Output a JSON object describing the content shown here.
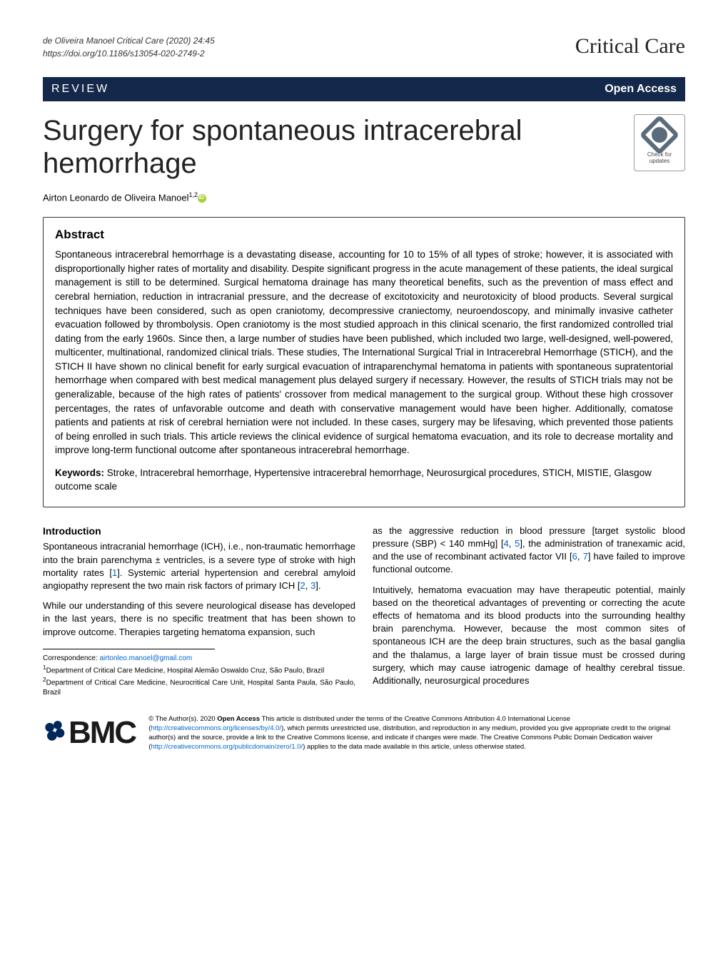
{
  "running": {
    "left_line1": "de Oliveira Manoel Critical Care          (2020) 24:45",
    "left_line2": "https://doi.org/10.1186/s13054-020-2749-2",
    "journal": "Critical Care"
  },
  "bar": {
    "type": "REVIEW",
    "access": "Open Access"
  },
  "title": "Surgery for spontaneous intracerebral hemorrhage",
  "badge": {
    "text": "Check for updates"
  },
  "authors": {
    "name": "Airton Leonardo de Oliveira Manoel",
    "affil": "1,2"
  },
  "abstract": {
    "heading": "Abstract",
    "body": "Spontaneous intracerebral hemorrhage is a devastating disease, accounting for 10 to 15% of all types of stroke; however, it is associated with disproportionally higher rates of mortality and disability. Despite significant progress in the acute management of these patients, the ideal surgical management is still to be determined. Surgical hematoma drainage has many theoretical benefits, such as the prevention of mass effect and cerebral herniation, reduction in intracranial pressure, and the decrease of excitotoxicity and neurotoxicity of blood products. Several surgical techniques have been considered, such as open craniotomy, decompressive craniectomy, neuroendoscopy, and minimally invasive catheter evacuation followed by thrombolysis. Open craniotomy is the most studied approach in this clinical scenario, the first randomized controlled trial dating from the early 1960s. Since then, a large number of studies have been published, which included two large, well-designed, well-powered, multicenter, multinational, randomized clinical trials. These studies, The International Surgical Trial in Intracerebral Hemorrhage (STICH), and the STICH II have shown no clinical benefit for early surgical evacuation of intraparenchymal hematoma in patients with spontaneous supratentorial hemorrhage when compared with best medical management plus delayed surgery if necessary. However, the results of STICH trials may not be generalizable, because of the high rates of patients' crossover from medical management to the surgical group. Without these high crossover percentages, the rates of unfavorable outcome and death with conservative management would have been higher. Additionally, comatose patients and patients at risk of cerebral herniation were not included. In these cases, surgery may be lifesaving, which prevented those patients of being enrolled in such trials. This article reviews the clinical evidence of surgical hematoma evacuation, and its role to decrease mortality and improve long-term functional outcome after spontaneous intracerebral hemorrhage.",
    "keywords_label": "Keywords:",
    "keywords": " Stroke, Intracerebral hemorrhage, Hypertensive intracerebral hemorrhage, Neurosurgical procedures, STICH, MISTIE, Glasgow outcome scale"
  },
  "intro": {
    "heading": "Introduction",
    "p1a": "Spontaneous intracranial hemorrhage (ICH), i.e., non-traumatic hemorrhage into the brain parenchyma ± ventricles, is a severe type of stroke with high mortality rates [",
    "r1": "1",
    "p1b": "]. Systemic arterial hypertension and cerebral amyloid angiopathy represent the two main risk factors of primary ICH [",
    "r2": "2",
    "p1c": ", ",
    "r3": "3",
    "p1d": "].",
    "p2": "While our understanding of this severe neurological disease has developed in the last years, there is no specific treatment that has been shown to improve outcome. Therapies targeting hematoma expansion, such"
  },
  "col2": {
    "p1a": "as the aggressive reduction in blood pressure [target systolic blood pressure (SBP) < 140 mmHg] [",
    "r4": "4",
    "p1b": ", ",
    "r5": "5",
    "p1c": "], the administration of tranexamic acid, and the use of recombinant activated factor VII [",
    "r6": "6",
    "p1d": ", ",
    "r7": "7",
    "p1e": "] have failed to improve functional outcome.",
    "p2": "Intuitively, hematoma evacuation may have therapeutic potential, mainly based on the theoretical advantages of preventing or correcting the acute effects of hematoma and its blood products into the surrounding healthy brain parenchyma. However, because the most common sites of spontaneous ICH are the deep brain structures, such as the basal ganglia and the thalamus, a large layer of brain tissue must be crossed during surgery, which may cause iatrogenic damage of healthy cerebral tissue. Additionally, neurosurgical procedures"
  },
  "correspondence": {
    "label": "Correspondence: ",
    "email": "airtonleo.manoel@gmail.com",
    "a1": "Department of Critical Care Medicine, Hospital Alemão Oswaldo Cruz, São Paulo, Brazil",
    "a2": "Department of Critical Care Medicine, Neurocritical Care Unit, Hospital Santa Paula, São Paulo, Brazil"
  },
  "footer": {
    "logo": "BMC",
    "license_a": "© The Author(s). 2020 ",
    "license_bold": "Open Access",
    "license_b": " This article is distributed under the terms of the Creative Commons Attribution 4.0 International License (",
    "url1": "http://creativecommons.org/licenses/by/4.0/",
    "license_c": "), which permits unrestricted use, distribution, and reproduction in any medium, provided you give appropriate credit to the original author(s) and the source, provide a link to the Creative Commons license, and indicate if changes were made. The Creative Commons Public Domain Dedication waiver (",
    "url2": "http://creativecommons.org/publicdomain/zero/1.0/",
    "license_d": ") applies to the data made available in this article, unless otherwise stated."
  }
}
